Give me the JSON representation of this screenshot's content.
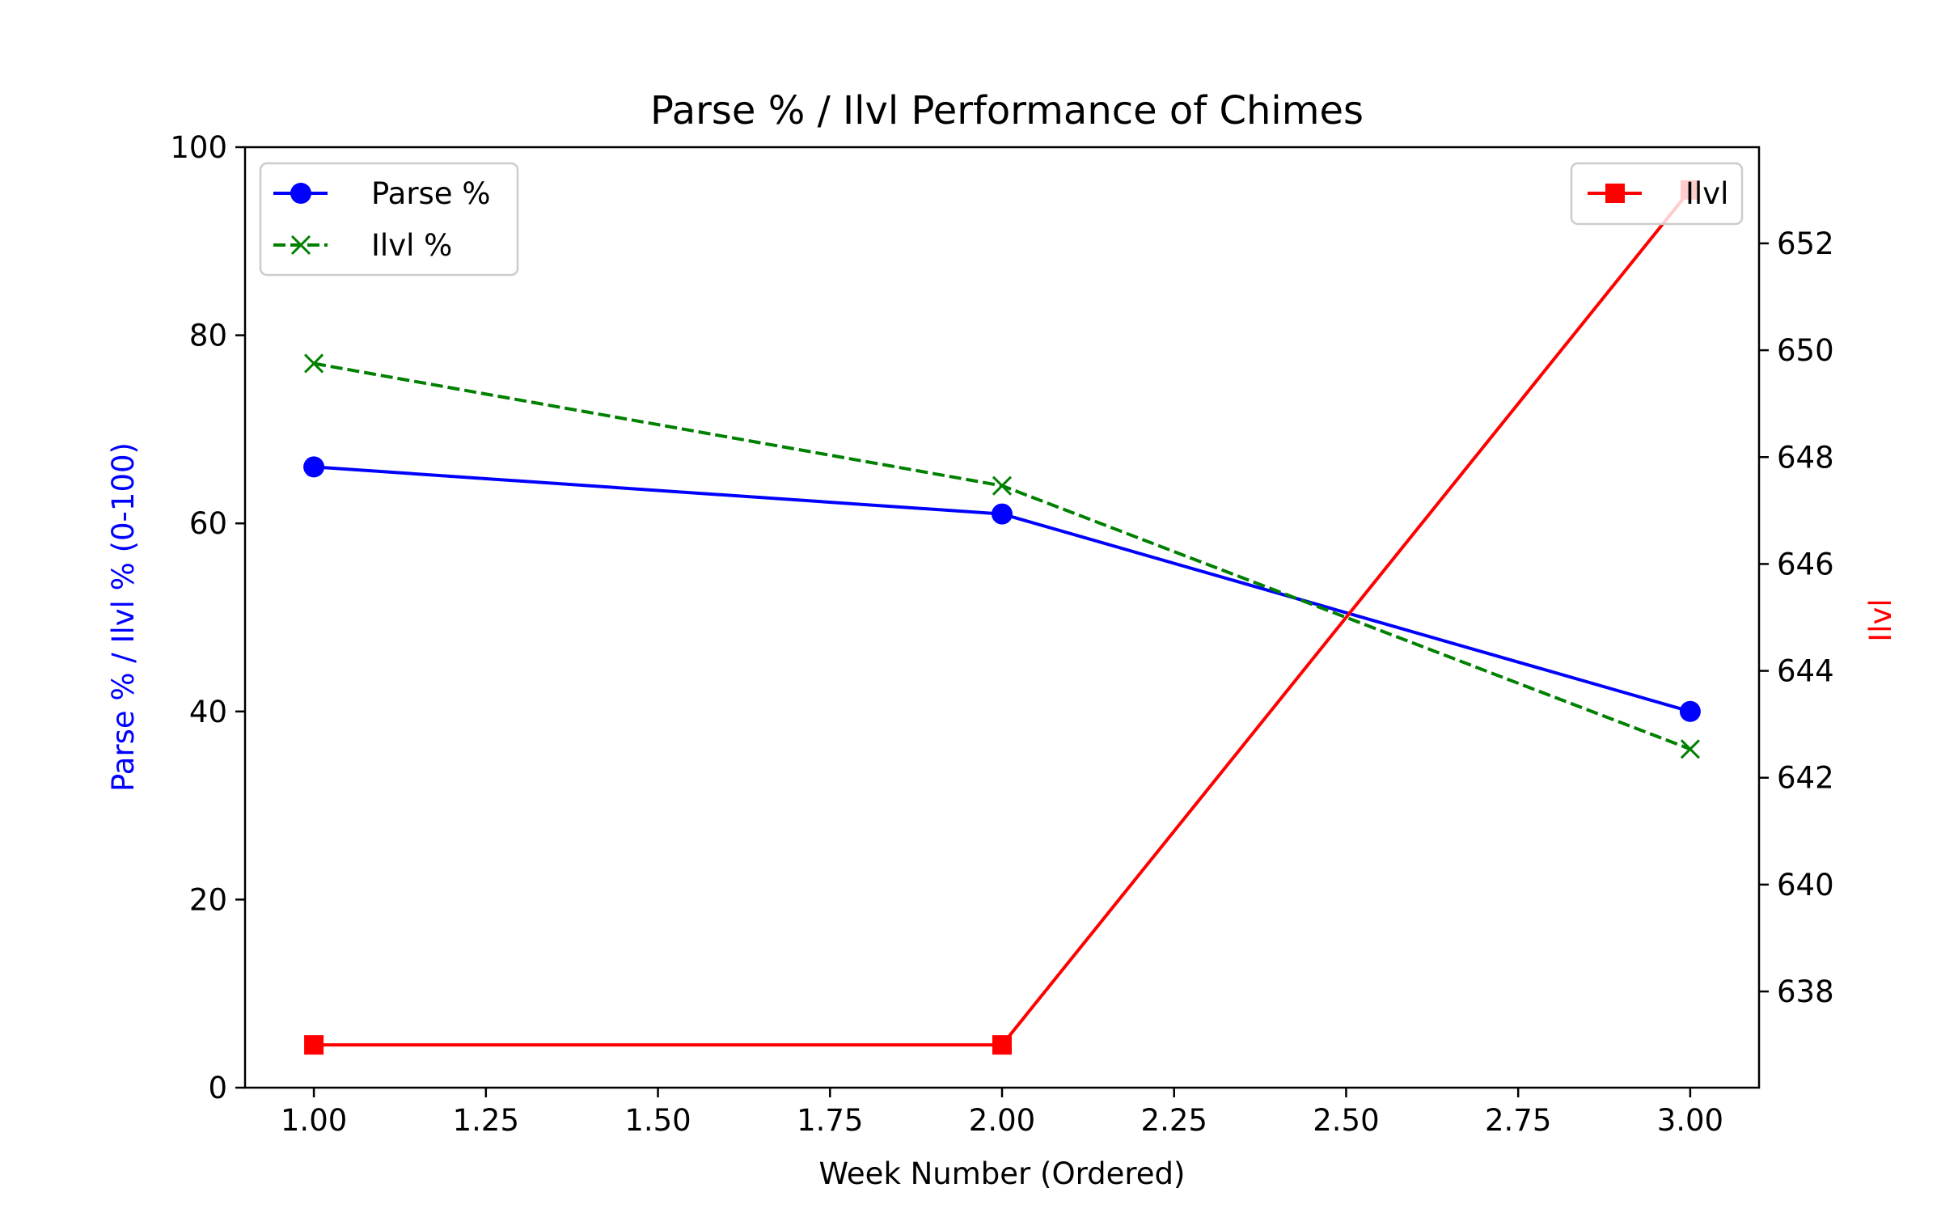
{
  "chart_data": {
    "type": "line",
    "title": "Parse % / Ilvl Performance of Chimes",
    "xlabel": "Week Number (Ordered)",
    "ylabel_left": "Parse % / Ilvl % (0-100)",
    "ylabel_right": "Ilvl",
    "xlim": [
      0.9,
      3.1
    ],
    "ylim_left": [
      0,
      100
    ],
    "ylim_right": [
      636.2,
      653.8
    ],
    "x_ticks": [
      "1.00",
      "1.25",
      "1.50",
      "1.75",
      "2.00",
      "2.25",
      "2.50",
      "2.75",
      "3.00"
    ],
    "y_left_ticks": [
      "0",
      "20",
      "40",
      "60",
      "80",
      "100"
    ],
    "y_right_ticks": [
      "638",
      "640",
      "642",
      "644",
      "646",
      "648",
      "650",
      "652"
    ],
    "grid": false,
    "legend_left_placement": "top-left",
    "legend_right_placement": "top-right",
    "series": [
      {
        "name": "Parse %",
        "axis": "left",
        "x": [
          1,
          2,
          3
        ],
        "values": [
          66,
          61,
          40
        ],
        "color": "#0000ff",
        "style": "solid",
        "marker": "circle"
      },
      {
        "name": "Ilvl %",
        "axis": "left",
        "x": [
          1,
          2,
          3
        ],
        "values": [
          77,
          64,
          36
        ],
        "color": "#008000",
        "style": "dashed",
        "marker": "x"
      },
      {
        "name": "Ilvl",
        "axis": "right",
        "x": [
          1,
          2,
          3
        ],
        "values": [
          637,
          637,
          653
        ],
        "color": "#ff0000",
        "style": "solid",
        "marker": "square"
      }
    ]
  }
}
